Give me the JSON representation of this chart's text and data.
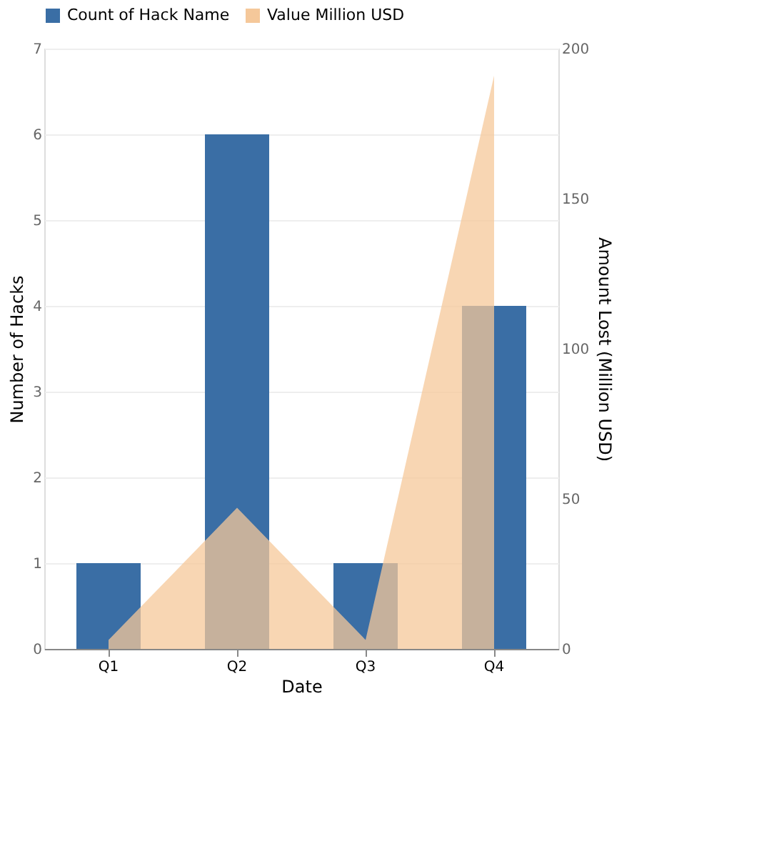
{
  "chart_data": {
    "type": "bar",
    "xlabel": "Date",
    "ylabel": "Number of Hacks",
    "y2label": "Amount Lost (Million USD)",
    "categories": [
      "Q1",
      "Q2",
      "Q3",
      "Q4"
    ],
    "series": [
      {
        "name": "Count of Hack Name",
        "color": "#3a6ea5",
        "values": [
          1,
          6,
          1,
          4
        ]
      },
      {
        "name": "Value Million USD",
        "type": "area",
        "axis": "y2",
        "color": "#f5c89a",
        "values": [
          3,
          47,
          3,
          191
        ]
      }
    ],
    "ylim": [
      0,
      7
    ],
    "yticks": [
      0,
      1,
      2,
      3,
      4,
      5,
      6,
      7
    ],
    "y2lim": [
      0,
      200
    ],
    "y2ticks": [
      0,
      50,
      100,
      150,
      200
    ],
    "grid": "y",
    "legend": "top"
  }
}
